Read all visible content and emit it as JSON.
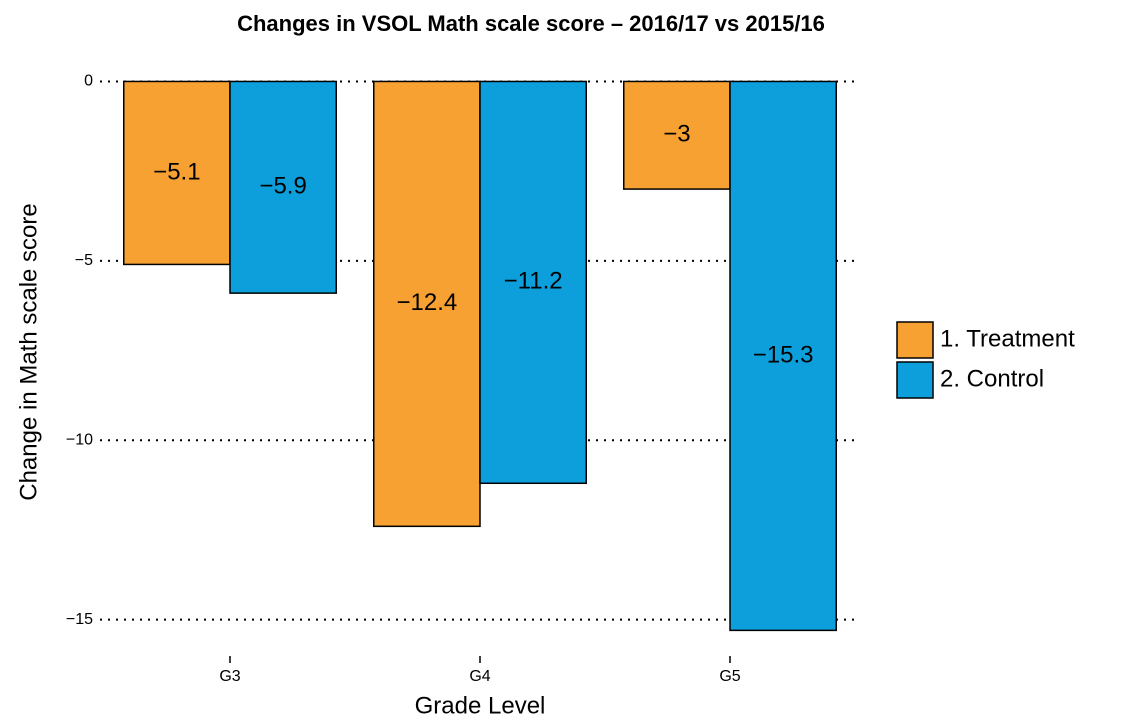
{
  "chart_data": {
    "type": "bar",
    "title": "Changes in VSOL Math scale score – 2016/17 vs 2015/16",
    "x_label": "Grade Level",
    "y_label": "Change in Math scale score",
    "categories": [
      "G3",
      "G4",
      "G5"
    ],
    "series": [
      {
        "name": "1. Treatment",
        "color": "#f8a133",
        "values": [
          -5.1,
          -12.4,
          -3
        ],
        "value_labels": [
          "−5.1",
          "−12.4",
          "−3"
        ]
      },
      {
        "name": "2. Control",
        "color": "#0c9fdb",
        "values": [
          -5.9,
          -11.2,
          -15.3
        ],
        "value_labels": [
          "−5.9",
          "−11.2",
          "−15.3"
        ]
      }
    ],
    "ylim": [
      -16.07,
      0.765
    ],
    "yticks": [
      {
        "value": -15,
        "label": "−15"
      },
      {
        "value": -10,
        "label": "−10"
      },
      {
        "value": -5,
        "label": "−5"
      },
      0
    ],
    "grid": true,
    "legend": "right"
  }
}
